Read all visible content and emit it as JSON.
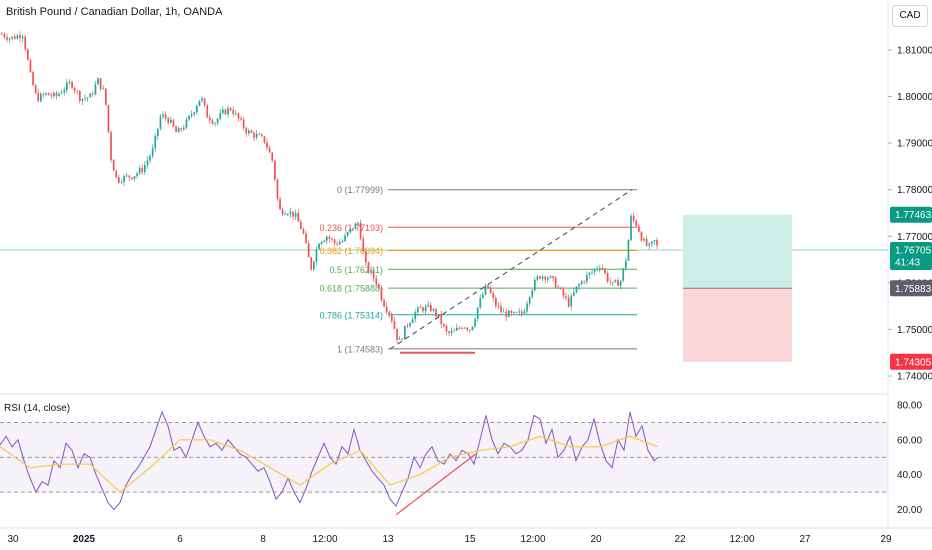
{
  "header": {
    "title": "British Pound / Canadian Dollar, 1h, OANDA",
    "currency": "CAD"
  },
  "colors": {
    "up": "#26a69a",
    "down": "#ef5350",
    "rsi_line": "#7e57c2",
    "rsi_ma": "#f9c846",
    "profit_zone": "#cdeee7",
    "loss_zone": "#fcd7d9",
    "current_price_line": "#26a69a"
  },
  "chart_data": {
    "type": "candlestick",
    "symbol": "GBPCAD",
    "interval": "1h",
    "price_axis": {
      "range": [
        1.7385,
        1.8175
      ],
      "ticks": [
        "1.81000",
        "1.80000",
        "1.79000",
        "1.78000",
        "1.77000",
        "1.76000",
        "1.75000",
        "1.74000"
      ]
    },
    "time_axis": {
      "ticks": [
        "30",
        "2025",
        "6",
        "8",
        "12:00",
        "13",
        "15",
        "12:00",
        "20",
        "22",
        "12:00",
        "27",
        "29"
      ]
    },
    "close_path": [
      [
        0,
        1.8135
      ],
      [
        10,
        1.8125
      ],
      [
        22,
        1.8135
      ],
      [
        30,
        1.804
      ],
      [
        36,
        1.7995
      ],
      [
        45,
        1.8005
      ],
      [
        55,
        1.8
      ],
      [
        62,
        1.8015
      ],
      [
        70,
        1.803
      ],
      [
        80,
        1.7995
      ],
      [
        90,
        1.8
      ],
      [
        97,
        1.8035
      ],
      [
        104,
        1.8005
      ],
      [
        110,
        1.787
      ],
      [
        116,
        1.782
      ],
      [
        122,
        1.7825
      ],
      [
        132,
        1.783
      ],
      [
        142,
        1.7845
      ],
      [
        152,
        1.7885
      ],
      [
        160,
        1.796
      ],
      [
        168,
        1.795
      ],
      [
        176,
        1.792
      ],
      [
        186,
        1.7945
      ],
      [
        194,
        1.7975
      ],
      [
        200,
        1.8
      ],
      [
        206,
        1.796
      ],
      [
        214,
        1.7945
      ],
      [
        222,
        1.7965
      ],
      [
        230,
        1.7975
      ],
      [
        238,
        1.795
      ],
      [
        246,
        1.7925
      ],
      [
        256,
        1.7915
      ],
      [
        264,
        1.7905
      ],
      [
        272,
        1.786
      ],
      [
        278,
        1.7755
      ],
      [
        286,
        1.7755
      ],
      [
        294,
        1.7745
      ],
      [
        302,
        1.771
      ],
      [
        310,
        1.763
      ],
      [
        318,
        1.769
      ],
      [
        326,
        1.77
      ],
      [
        334,
        1.7685
      ],
      [
        342,
        1.769
      ],
      [
        350,
        1.7715
      ],
      [
        358,
        1.773
      ],
      [
        364,
        1.764
      ],
      [
        370,
        1.762
      ],
      [
        376,
        1.76
      ],
      [
        382,
        1.756
      ],
      [
        390,
        1.753
      ],
      [
        398,
        1.747
      ],
      [
        406,
        1.751
      ],
      [
        414,
        1.7535
      ],
      [
        420,
        1.7545
      ],
      [
        430,
        1.7545
      ],
      [
        438,
        1.7525
      ],
      [
        446,
        1.749
      ],
      [
        454,
        1.7495
      ],
      [
        462,
        1.751
      ],
      [
        470,
        1.75
      ],
      [
        478,
        1.7555
      ],
      [
        486,
        1.7595
      ],
      [
        494,
        1.7555
      ],
      [
        502,
        1.7535
      ],
      [
        512,
        1.753
      ],
      [
        522,
        1.7535
      ],
      [
        530,
        1.7585
      ],
      [
        538,
        1.7615
      ],
      [
        546,
        1.7615
      ],
      [
        554,
        1.76
      ],
      [
        560,
        1.758
      ],
      [
        568,
        1.7555
      ],
      [
        576,
        1.759
      ],
      [
        584,
        1.761
      ],
      [
        592,
        1.7625
      ],
      [
        600,
        1.764
      ],
      [
        606,
        1.761
      ],
      [
        612,
        1.7595
      ],
      [
        620,
        1.7605
      ],
      [
        626,
        1.766
      ],
      [
        630,
        1.774
      ],
      [
        636,
        1.7725
      ],
      [
        642,
        1.769
      ],
      [
        648,
        1.7675
      ],
      [
        654,
        1.769
      ],
      [
        658,
        1.7668
      ]
    ],
    "fibonacci": {
      "levels": [
        {
          "label": "0 (1.77999)",
          "price": 1.77999,
          "color": "#787b86"
        },
        {
          "label": "0.236 (1.77193)",
          "price": 1.77193,
          "color": "#ef5350"
        },
        {
          "label": "0.382 (1.76694)",
          "price": 1.76694,
          "color": "#ff9800"
        },
        {
          "label": "0.5 (1.76291)",
          "price": 1.76291,
          "color": "#4caf50"
        },
        {
          "label": "0.618 (1.75888)",
          "price": 1.75888,
          "color": "#4caf50"
        },
        {
          "label": "0.786 (1.75314)",
          "price": 1.75314,
          "color": "#26a69a"
        },
        {
          "label": "1 (1.74583)",
          "price": 1.74583,
          "color": "#787b86"
        }
      ]
    },
    "trendline": {
      "from": [
        390,
        1.7458
      ],
      "to": [
        632,
        1.78
      ]
    },
    "support_segment": {
      "from": [
        400,
        1.745
      ],
      "to": [
        475,
        1.745
      ]
    },
    "position": {
      "entry": 1.75883,
      "take_profit": 1.77463,
      "stop_loss": 1.74305,
      "x_range": [
        683,
        792
      ]
    },
    "price_labels": {
      "take_profit": "1.77463",
      "current": "1.76705",
      "countdown": "41:43",
      "entry": "1.75883",
      "stop_loss": "1.74305"
    },
    "current_price": 1.76705,
    "rsi": {
      "label": "RSI (14, close)",
      "range": [
        14,
        84
      ],
      "ticks": [
        "80.00",
        "60.00",
        "40.00",
        "20.00"
      ],
      "bands": [
        70,
        50,
        30
      ],
      "series": [
        [
          0,
          57
        ],
        [
          6,
          62
        ],
        [
          12,
          56
        ],
        [
          18,
          60
        ],
        [
          24,
          48
        ],
        [
          30,
          38
        ],
        [
          36,
          30
        ],
        [
          42,
          36
        ],
        [
          48,
          34
        ],
        [
          54,
          48
        ],
        [
          60,
          44
        ],
        [
          66,
          58
        ],
        [
          72,
          54
        ],
        [
          78,
          44
        ],
        [
          84,
          52
        ],
        [
          90,
          50
        ],
        [
          96,
          40
        ],
        [
          102,
          32
        ],
        [
          108,
          24
        ],
        [
          114,
          20
        ],
        [
          120,
          24
        ],
        [
          126,
          34
        ],
        [
          132,
          40
        ],
        [
          138,
          44
        ],
        [
          144,
          50
        ],
        [
          150,
          56
        ],
        [
          156,
          66
        ],
        [
          162,
          76
        ],
        [
          168,
          68
        ],
        [
          174,
          54
        ],
        [
          180,
          56
        ],
        [
          186,
          50
        ],
        [
          192,
          60
        ],
        [
          198,
          70
        ],
        [
          204,
          62
        ],
        [
          210,
          56
        ],
        [
          216,
          58
        ],
        [
          222,
          54
        ],
        [
          228,
          60
        ],
        [
          234,
          56
        ],
        [
          240,
          52
        ],
        [
          246,
          50
        ],
        [
          252,
          46
        ],
        [
          258,
          42
        ],
        [
          264,
          44
        ],
        [
          270,
          36
        ],
        [
          276,
          26
        ],
        [
          282,
          30
        ],
        [
          288,
          38
        ],
        [
          294,
          30
        ],
        [
          300,
          24
        ],
        [
          306,
          32
        ],
        [
          312,
          42
        ],
        [
          318,
          50
        ],
        [
          324,
          58
        ],
        [
          330,
          50
        ],
        [
          336,
          46
        ],
        [
          342,
          56
        ],
        [
          348,
          52
        ],
        [
          354,
          66
        ],
        [
          360,
          54
        ],
        [
          366,
          48
        ],
        [
          372,
          42
        ],
        [
          378,
          38
        ],
        [
          384,
          34
        ],
        [
          390,
          26
        ],
        [
          396,
          22
        ],
        [
          402,
          30
        ],
        [
          408,
          38
        ],
        [
          414,
          50
        ],
        [
          420,
          44
        ],
        [
          426,
          52
        ],
        [
          432,
          56
        ],
        [
          438,
          48
        ],
        [
          444,
          46
        ],
        [
          450,
          52
        ],
        [
          456,
          48
        ],
        [
          462,
          54
        ],
        [
          468,
          52
        ],
        [
          474,
          46
        ],
        [
          480,
          60
        ],
        [
          486,
          74
        ],
        [
          492,
          60
        ],
        [
          498,
          52
        ],
        [
          504,
          58
        ],
        [
          510,
          56
        ],
        [
          516,
          52
        ],
        [
          522,
          54
        ],
        [
          528,
          60
        ],
        [
          534,
          74
        ],
        [
          540,
          72
        ],
        [
          546,
          58
        ],
        [
          552,
          66
        ],
        [
          558,
          50
        ],
        [
          564,
          54
        ],
        [
          570,
          62
        ],
        [
          576,
          48
        ],
        [
          582,
          56
        ],
        [
          588,
          60
        ],
        [
          594,
          72
        ],
        [
          600,
          58
        ],
        [
          606,
          48
        ],
        [
          612,
          44
        ],
        [
          618,
          60
        ],
        [
          624,
          54
        ],
        [
          630,
          76
        ],
        [
          636,
          62
        ],
        [
          642,
          68
        ],
        [
          648,
          54
        ],
        [
          654,
          48
        ],
        [
          658,
          50
        ]
      ],
      "ma": [
        [
          0,
          56
        ],
        [
          30,
          44
        ],
        [
          60,
          46
        ],
        [
          90,
          46
        ],
        [
          120,
          30
        ],
        [
          150,
          44
        ],
        [
          180,
          60
        ],
        [
          210,
          60
        ],
        [
          240,
          54
        ],
        [
          270,
          44
        ],
        [
          300,
          34
        ],
        [
          330,
          46
        ],
        [
          360,
          54
        ],
        [
          390,
          34
        ],
        [
          420,
          40
        ],
        [
          450,
          50
        ],
        [
          480,
          54
        ],
        [
          510,
          56
        ],
        [
          540,
          62
        ],
        [
          570,
          56
        ],
        [
          600,
          56
        ],
        [
          630,
          62
        ],
        [
          658,
          56
        ]
      ],
      "divergence_line": {
        "from": [
          396,
          17
        ],
        "to": [
          476,
          52
        ]
      }
    }
  }
}
